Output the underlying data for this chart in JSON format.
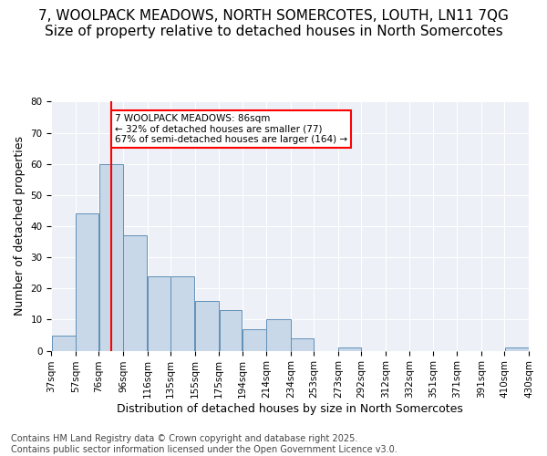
{
  "title_line1": "7, WOOLPACK MEADOWS, NORTH SOMERCOTES, LOUTH, LN11 7QG",
  "title_line2": "Size of property relative to detached houses in North Somercotes",
  "xlabel": "Distribution of detached houses by size in North Somercotes",
  "ylabel": "Number of detached properties",
  "bin_edges": [
    37,
    57,
    76,
    96,
    116,
    135,
    155,
    175,
    194,
    214,
    234,
    253,
    273,
    292,
    312,
    332,
    351,
    371,
    391,
    410,
    430
  ],
  "categories": [
    "37sqm",
    "57sqm",
    "76sqm",
    "96sqm",
    "116sqm",
    "135sqm",
    "155sqm",
    "175sqm",
    "194sqm",
    "214sqm",
    "234sqm",
    "253sqm",
    "273sqm",
    "292sqm",
    "312sqm",
    "332sqm",
    "351sqm",
    "371sqm",
    "391sqm",
    "410sqm",
    "430sqm"
  ],
  "bar_heights": [
    5,
    44,
    60,
    37,
    24,
    24,
    16,
    13,
    7,
    10,
    4,
    0,
    1,
    0,
    0,
    0,
    0,
    0,
    0,
    1,
    0
  ],
  "bar_color": "#c8d8e8",
  "bar_edge_color": "#6090b8",
  "property_line_x": 86,
  "annotation_text": "7 WOOLPACK MEADOWS: 86sqm\n← 32% of detached houses are smaller (77)\n67% of semi-detached houses are larger (164) →",
  "annotation_box_color": "white",
  "annotation_box_edge_color": "red",
  "vline_color": "red",
  "ylim": [
    0,
    80
  ],
  "yticks": [
    0,
    10,
    20,
    30,
    40,
    50,
    60,
    70,
    80
  ],
  "background_color": "#edf1f7",
  "grid_color": "white",
  "footer": "Contains HM Land Registry data © Crown copyright and database right 2025.\nContains public sector information licensed under the Open Government Licence v3.0.",
  "title_fontsize": 11,
  "axis_label_fontsize": 9,
  "tick_fontsize": 7.5,
  "footer_fontsize": 7
}
